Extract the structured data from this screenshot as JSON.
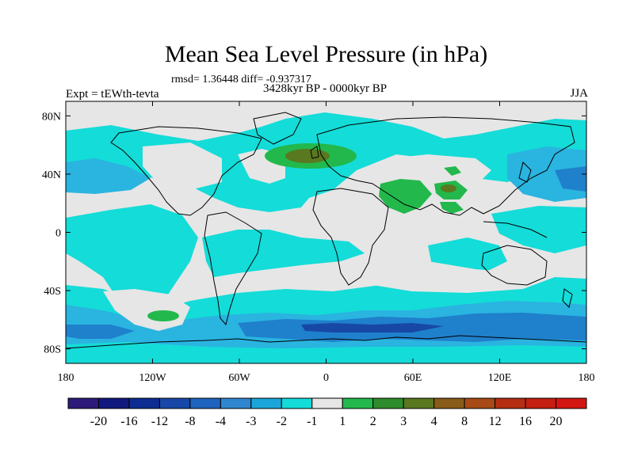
{
  "map": {
    "title": "Mean Sea Level Pressure (in hPa)",
    "stats": "rmsd= 1.36448 diff= -0.937317",
    "experiment": "Expt = tEWth-tevta",
    "period": "3428kyr BP - 0000kyr BP",
    "season": "JJA",
    "lat_labels": [
      "80N",
      "40N",
      "0",
      "40S",
      "80S"
    ],
    "lon_labels": [
      "180",
      "120W",
      "60W",
      "0",
      "60E",
      "120E",
      "180"
    ],
    "colorbar": {
      "labels": [
        "-20",
        "-16",
        "-12",
        "-8",
        "-4",
        "-3",
        "-2",
        "-1",
        "1",
        "2",
        "3",
        "4",
        "8",
        "12",
        "16",
        "20"
      ],
      "colors": [
        "#2e1a7a",
        "#12197e",
        "#0d2d92",
        "#1748a8",
        "#1e63bd",
        "#2f86cf",
        "#1aa6d9",
        "#14dcd8",
        "#e6e6e6",
        "#22b84c",
        "#2f8c2c",
        "#5a7820",
        "#8a5c19",
        "#a84a16",
        "#b52e12",
        "#c41f10",
        "#d41612"
      ]
    },
    "colors": {
      "background": "#e6e6e6",
      "cyan": "#14dcd8",
      "light_blue": "#2ab4e0",
      "mid_blue": "#1f80cc",
      "dark_blue": "#1848a6",
      "green": "#22b84c",
      "dark_green": "#5a7820",
      "coast": "#000000"
    }
  }
}
